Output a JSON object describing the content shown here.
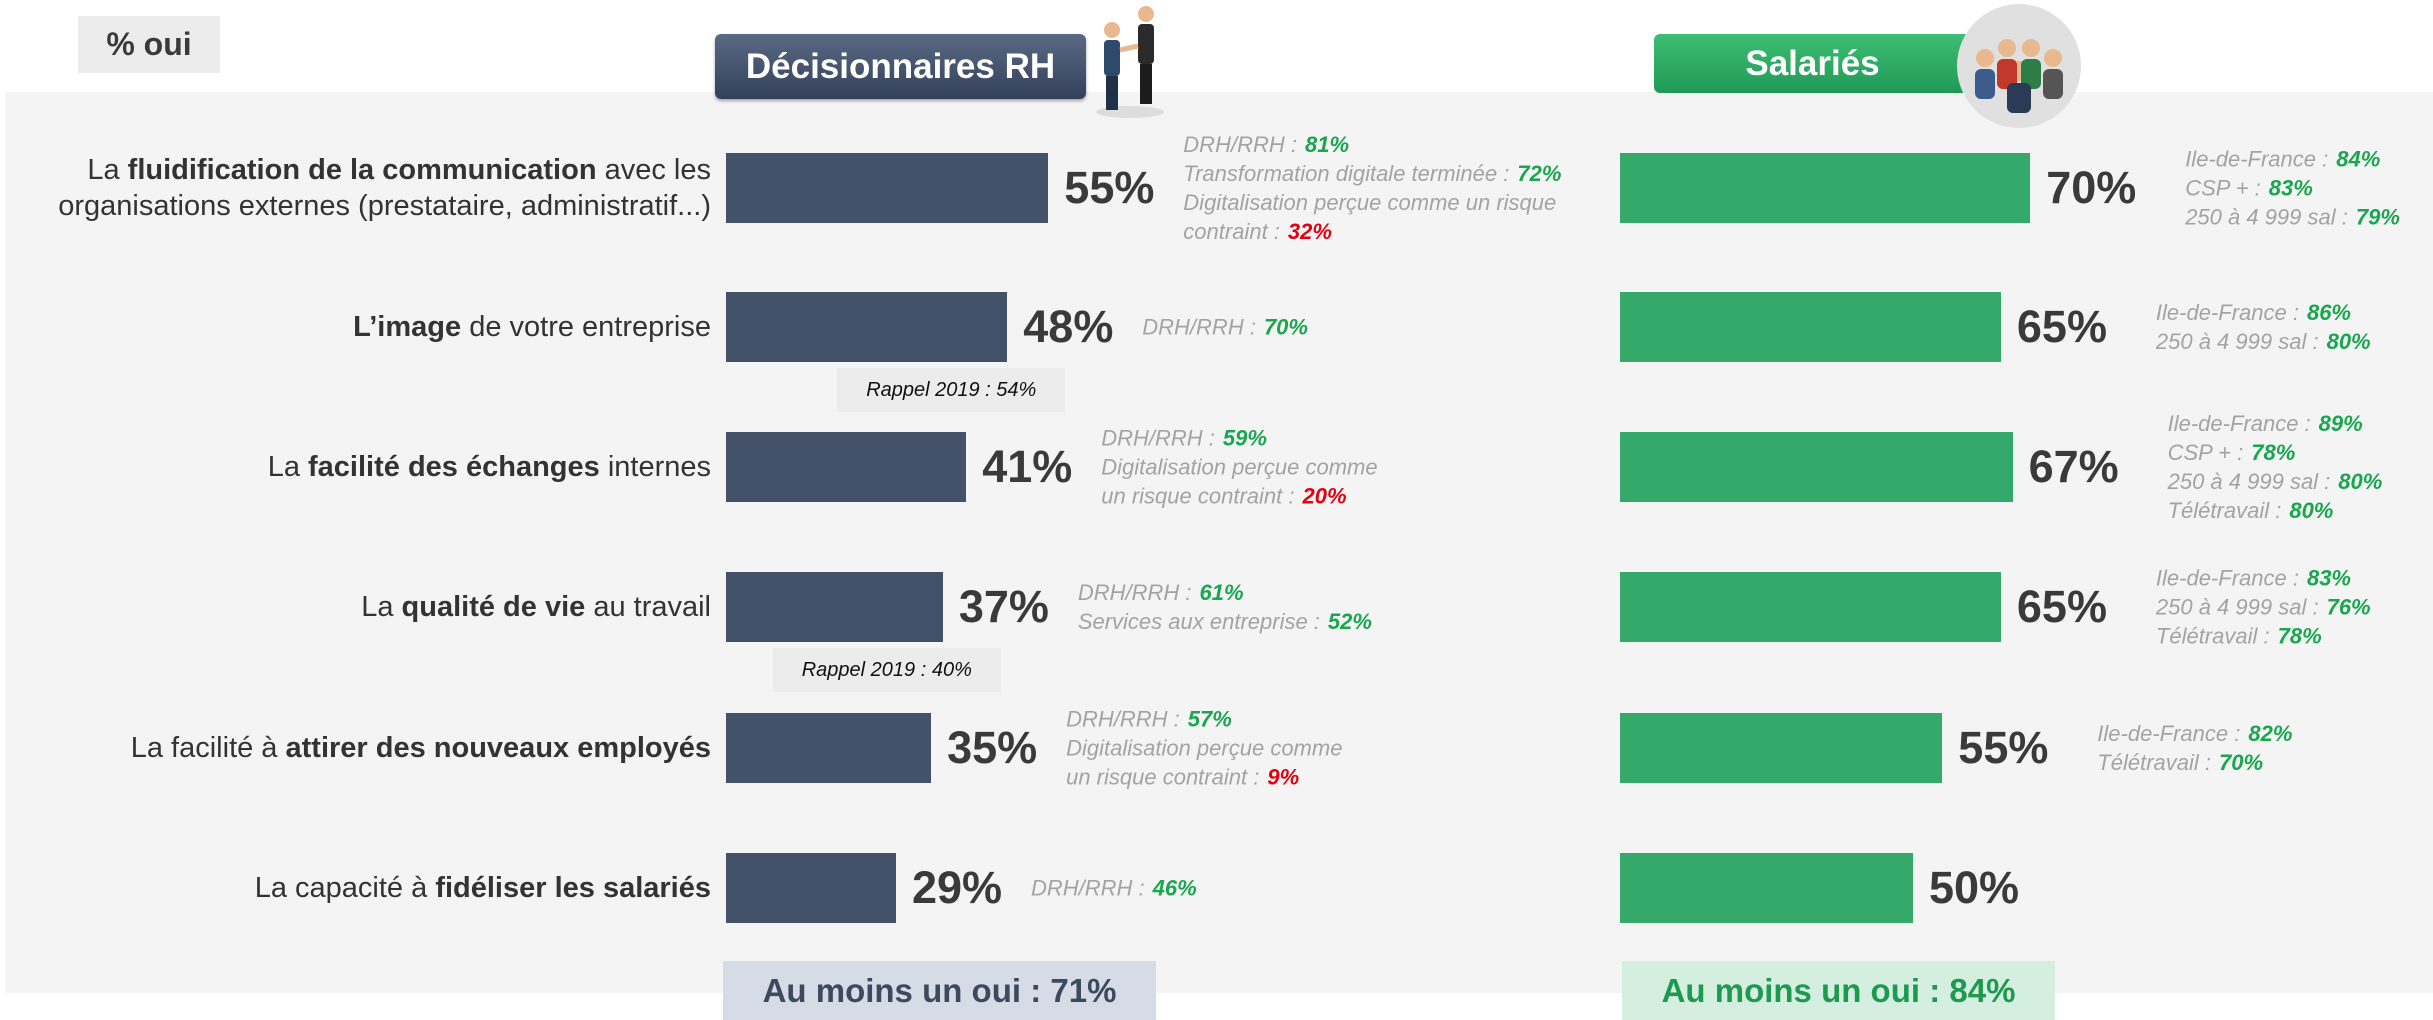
{
  "unit_label": "% oui",
  "chart_data": [
    {
      "type": "bar",
      "orientation": "horizontal",
      "title": "Décisionnaires RH",
      "color": "#435169",
      "xlim": [
        0,
        100
      ],
      "categories": [
        [
          {
            "text": "La "
          },
          {
            "text": "fluidification de la communication",
            "bold": true
          },
          {
            "text": " avec les organisations externes (prestataire, administratif...)"
          }
        ],
        [
          {
            "text": "L’image",
            "bold": true
          },
          {
            "text": " de votre entreprise"
          }
        ],
        [
          {
            "text": "La "
          },
          {
            "text": "facilité des échanges",
            "bold": true
          },
          {
            "text": " internes"
          }
        ],
        [
          {
            "text": "La "
          },
          {
            "text": "qualité de vie",
            "bold": true
          },
          {
            "text": " au travail"
          }
        ],
        [
          {
            "text": "La facilité à "
          },
          {
            "text": "attirer des nouveaux employés",
            "bold": true
          }
        ],
        [
          {
            "text": "La capacité à "
          },
          {
            "text": "fidéliser les salariés",
            "bold": true
          }
        ]
      ],
      "values": [
        55,
        48,
        41,
        37,
        35,
        29
      ],
      "value_labels": [
        "55%",
        "48%",
        "41%",
        "37%",
        "35%",
        "29%"
      ],
      "notes": [
        [
          {
            "text": "DRH/RRH :",
            "value": "81%",
            "value_color": "#1aa64f"
          },
          {
            "text": "Transformation digitale terminée :",
            "value": "72%",
            "value_color": "#1aa64f"
          },
          {
            "text": "Digitalisation perçue comme un risque\ncontraint :",
            "value": "32%",
            "value_color": "#e3000f"
          }
        ],
        [
          {
            "text": "DRH/RRH :",
            "value": "70%",
            "value_color": "#1aa64f"
          }
        ],
        [
          {
            "text": "DRH/RRH :",
            "value": "59%",
            "value_color": "#1aa64f"
          },
          {
            "text": "Digitalisation perçue comme\nun risque contraint :",
            "value": "20%",
            "value_color": "#e3000f"
          }
        ],
        [
          {
            "text": "DRH/RRH :",
            "value": "61%",
            "value_color": "#1aa64f"
          },
          {
            "text": "Services aux entreprise :",
            "value": "52%",
            "value_color": "#1aa64f"
          }
        ],
        [
          {
            "text": "DRH/RRH :",
            "value": "57%",
            "value_color": "#1aa64f"
          },
          {
            "text": "Digitalisation perçue comme\nun risque contraint :",
            "value": "9%",
            "value_color": "#e3000f"
          }
        ],
        [
          {
            "text": "DRH/RRH :",
            "value": "46%",
            "value_color": "#1aa64f"
          }
        ]
      ],
      "recalls": [
        null,
        "Rappel 2019 : 54%",
        null,
        "Rappel 2019 : 40%",
        null,
        null
      ],
      "footer": "Au moins un oui : 71%"
    },
    {
      "type": "bar",
      "orientation": "horizontal",
      "title": "Salariés",
      "color": "#34a96a",
      "xlim": [
        0,
        100
      ],
      "values": [
        70,
        65,
        67,
        65,
        55,
        50
      ],
      "value_labels": [
        "70%",
        "65%",
        "67%",
        "65%",
        "55%",
        "50%"
      ],
      "notes": [
        [
          {
            "text": "Ile-de-France :",
            "value": "84%",
            "value_color": "#1aa64f"
          },
          {
            "text": "CSP + :",
            "value": "83%",
            "value_color": "#1aa64f"
          },
          {
            "text": "250 à 4 999 sal :",
            "value": "79%",
            "value_color": "#1aa64f"
          }
        ],
        [
          {
            "text": "Ile-de-France :",
            "value": "86%",
            "value_color": "#1aa64f"
          },
          {
            "text": "250 à 4 999 sal :",
            "value": "80%",
            "value_color": "#1aa64f"
          }
        ],
        [
          {
            "text": "Ile-de-France :",
            "value": "89%",
            "value_color": "#1aa64f"
          },
          {
            "text": "CSP + :",
            "value": "78%",
            "value_color": "#1aa64f"
          },
          {
            "text": "250 à 4 999 sal :",
            "value": "80%",
            "value_color": "#1aa64f"
          },
          {
            "text": "Télétravail :",
            "value": "80%",
            "value_color": "#1aa64f"
          }
        ],
        [
          {
            "text": "Ile-de-France :",
            "value": "83%",
            "value_color": "#1aa64f"
          },
          {
            "text": "250 à 4 999 sal :",
            "value": "76%",
            "value_color": "#1aa64f"
          },
          {
            "text": "Télétravail :",
            "value": "78%",
            "value_color": "#1aa64f"
          }
        ],
        [
          {
            "text": "Ile-de-France :",
            "value": "82%",
            "value_color": "#1aa64f"
          },
          {
            "text": "Télétravail :",
            "value": "70%",
            "value_color": "#1aa64f"
          }
        ],
        []
      ],
      "footer": "Au moins un oui : 84%"
    }
  ]
}
